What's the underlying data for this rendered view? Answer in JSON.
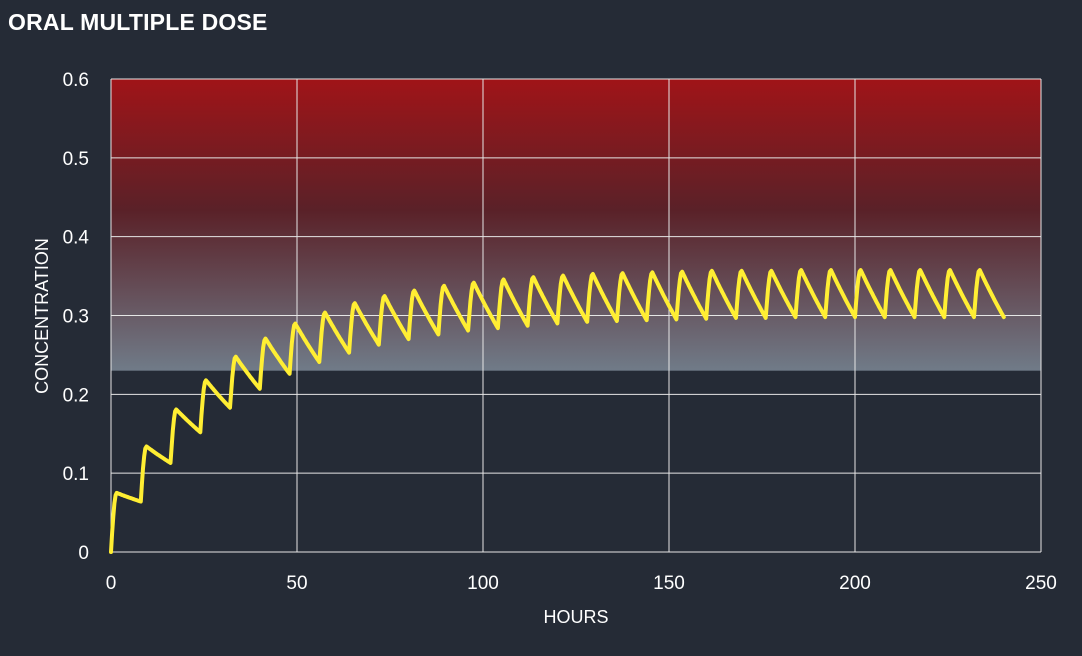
{
  "title": "ORAL MULTIPLE DOSE",
  "colors": {
    "background": "#252b36",
    "line": "#ffee33",
    "toxic_band_top": "#a01418",
    "therapeutic_band_bottom": "#707b88",
    "grid": "#e6e6e6"
  },
  "chart_data": {
    "type": "line",
    "title": "ORAL MULTIPLE DOSE",
    "xlabel": "HOURS",
    "ylabel": "CONCENTRATION",
    "xlim": [
      0,
      250
    ],
    "ylim": [
      0,
      0.6
    ],
    "x_ticks": [
      "0",
      "50",
      "100",
      "150",
      "200",
      "250"
    ],
    "y_ticks": [
      "0",
      "0.1",
      "0.2",
      "0.3",
      "0.4",
      "0.5",
      "0.6"
    ],
    "grid": true,
    "legend": "none",
    "bands": [
      {
        "y_from": 0.23,
        "y_to": 0.6,
        "fill": "gradient red (top) to grey (bottom)"
      }
    ],
    "series": [
      {
        "dose_times": [
          0,
          8,
          16,
          24,
          32,
          40,
          48,
          56,
          64,
          72,
          80,
          88,
          96,
          104,
          112,
          120,
          128,
          136,
          144,
          152,
          160,
          168,
          176,
          184,
          192,
          200,
          208,
          216,
          224,
          232
        ],
        "peaks": [
          0.075,
          0.134,
          0.181,
          0.218,
          0.248,
          0.271,
          0.29,
          0.304,
          0.316,
          0.325,
          0.332,
          0.338,
          0.342,
          0.346,
          0.349,
          0.351,
          0.353,
          0.354,
          0.355,
          0.356,
          0.357,
          0.357,
          0.357,
          0.358,
          0.358,
          0.358,
          0.358,
          0.358,
          0.358,
          0.358
        ],
        "troughs": [
          0.064,
          0.113,
          0.152,
          0.183,
          0.207,
          0.226,
          0.241,
          0.253,
          0.263,
          0.27,
          0.276,
          0.281,
          0.284,
          0.287,
          0.29,
          0.292,
          0.293,
          0.294,
          0.295,
          0.296,
          0.297,
          0.297,
          0.298,
          0.298,
          0.298,
          0.298,
          0.298,
          0.298,
          0.298,
          0.298
        ],
        "end_x": 240
      }
    ]
  }
}
